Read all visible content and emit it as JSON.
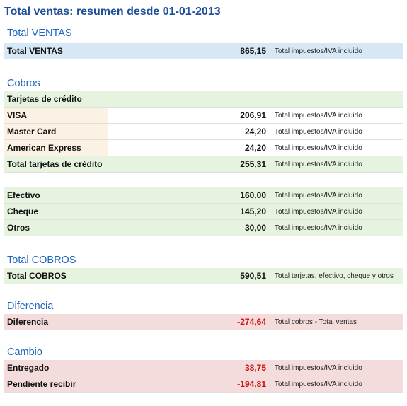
{
  "title": "Total ventas: resumen desde 01-01-2013",
  "sections": {
    "total_ventas": {
      "heading": "Total VENTAS",
      "row": {
        "label": "Total VENTAS",
        "amount": "865,15",
        "note": "Total impuestos/IVA incluido"
      }
    },
    "cobros": {
      "heading": "Cobros",
      "tarjetas_header": "Tarjetas de crédito",
      "tarjetas": [
        {
          "label": "VISA",
          "amount": "206,91",
          "note": "Total impuestos/IVA incluido"
        },
        {
          "label": "Master Card",
          "amount": "24,20",
          "note": "Total impuestos/IVA incluido"
        },
        {
          "label": "American Express",
          "amount": "24,20",
          "note": "Total impuestos/IVA incluido"
        }
      ],
      "total_tarjetas": {
        "label": "Total tarjetas de crédito",
        "amount": "255,31",
        "note": "Total impuestos/IVA incluido"
      },
      "otros_cobros": [
        {
          "label": "Efectivo",
          "amount": "160,00",
          "note": "Total impuestos/IVA incluido"
        },
        {
          "label": "Cheque",
          "amount": "145,20",
          "note": "Total impuestos/IVA incluido"
        },
        {
          "label": "Otros",
          "amount": "30,00",
          "note": "Total impuestos/IVA incluido"
        }
      ]
    },
    "total_cobros": {
      "heading": "Total COBROS",
      "row": {
        "label": "Total COBROS",
        "amount": "590,51",
        "note": "Total tarjetas, efectivo, cheque y otros"
      }
    },
    "diferencia": {
      "heading": "Diferencia",
      "row": {
        "label": "Diferencia",
        "amount": "-274,64",
        "note": "Total cobros - Total ventas"
      }
    },
    "cambio": {
      "heading": "Cambio",
      "rows": [
        {
          "label": "Entregado",
          "amount": "38,75",
          "note": "Total impuestos/IVA incluido"
        },
        {
          "label": "Pendiente recibir",
          "amount": "-194,81",
          "note": "Total impuestos/IVA incluido"
        }
      ]
    }
  },
  "colors": {
    "title": "#1f4f9a",
    "heading": "#1f66bf",
    "blue_row": "#d6e7f6",
    "green_row": "#e6f3df",
    "red_row": "#f5dcdc",
    "sub_label": "#fbf2e4",
    "negative": "#cc1010"
  }
}
